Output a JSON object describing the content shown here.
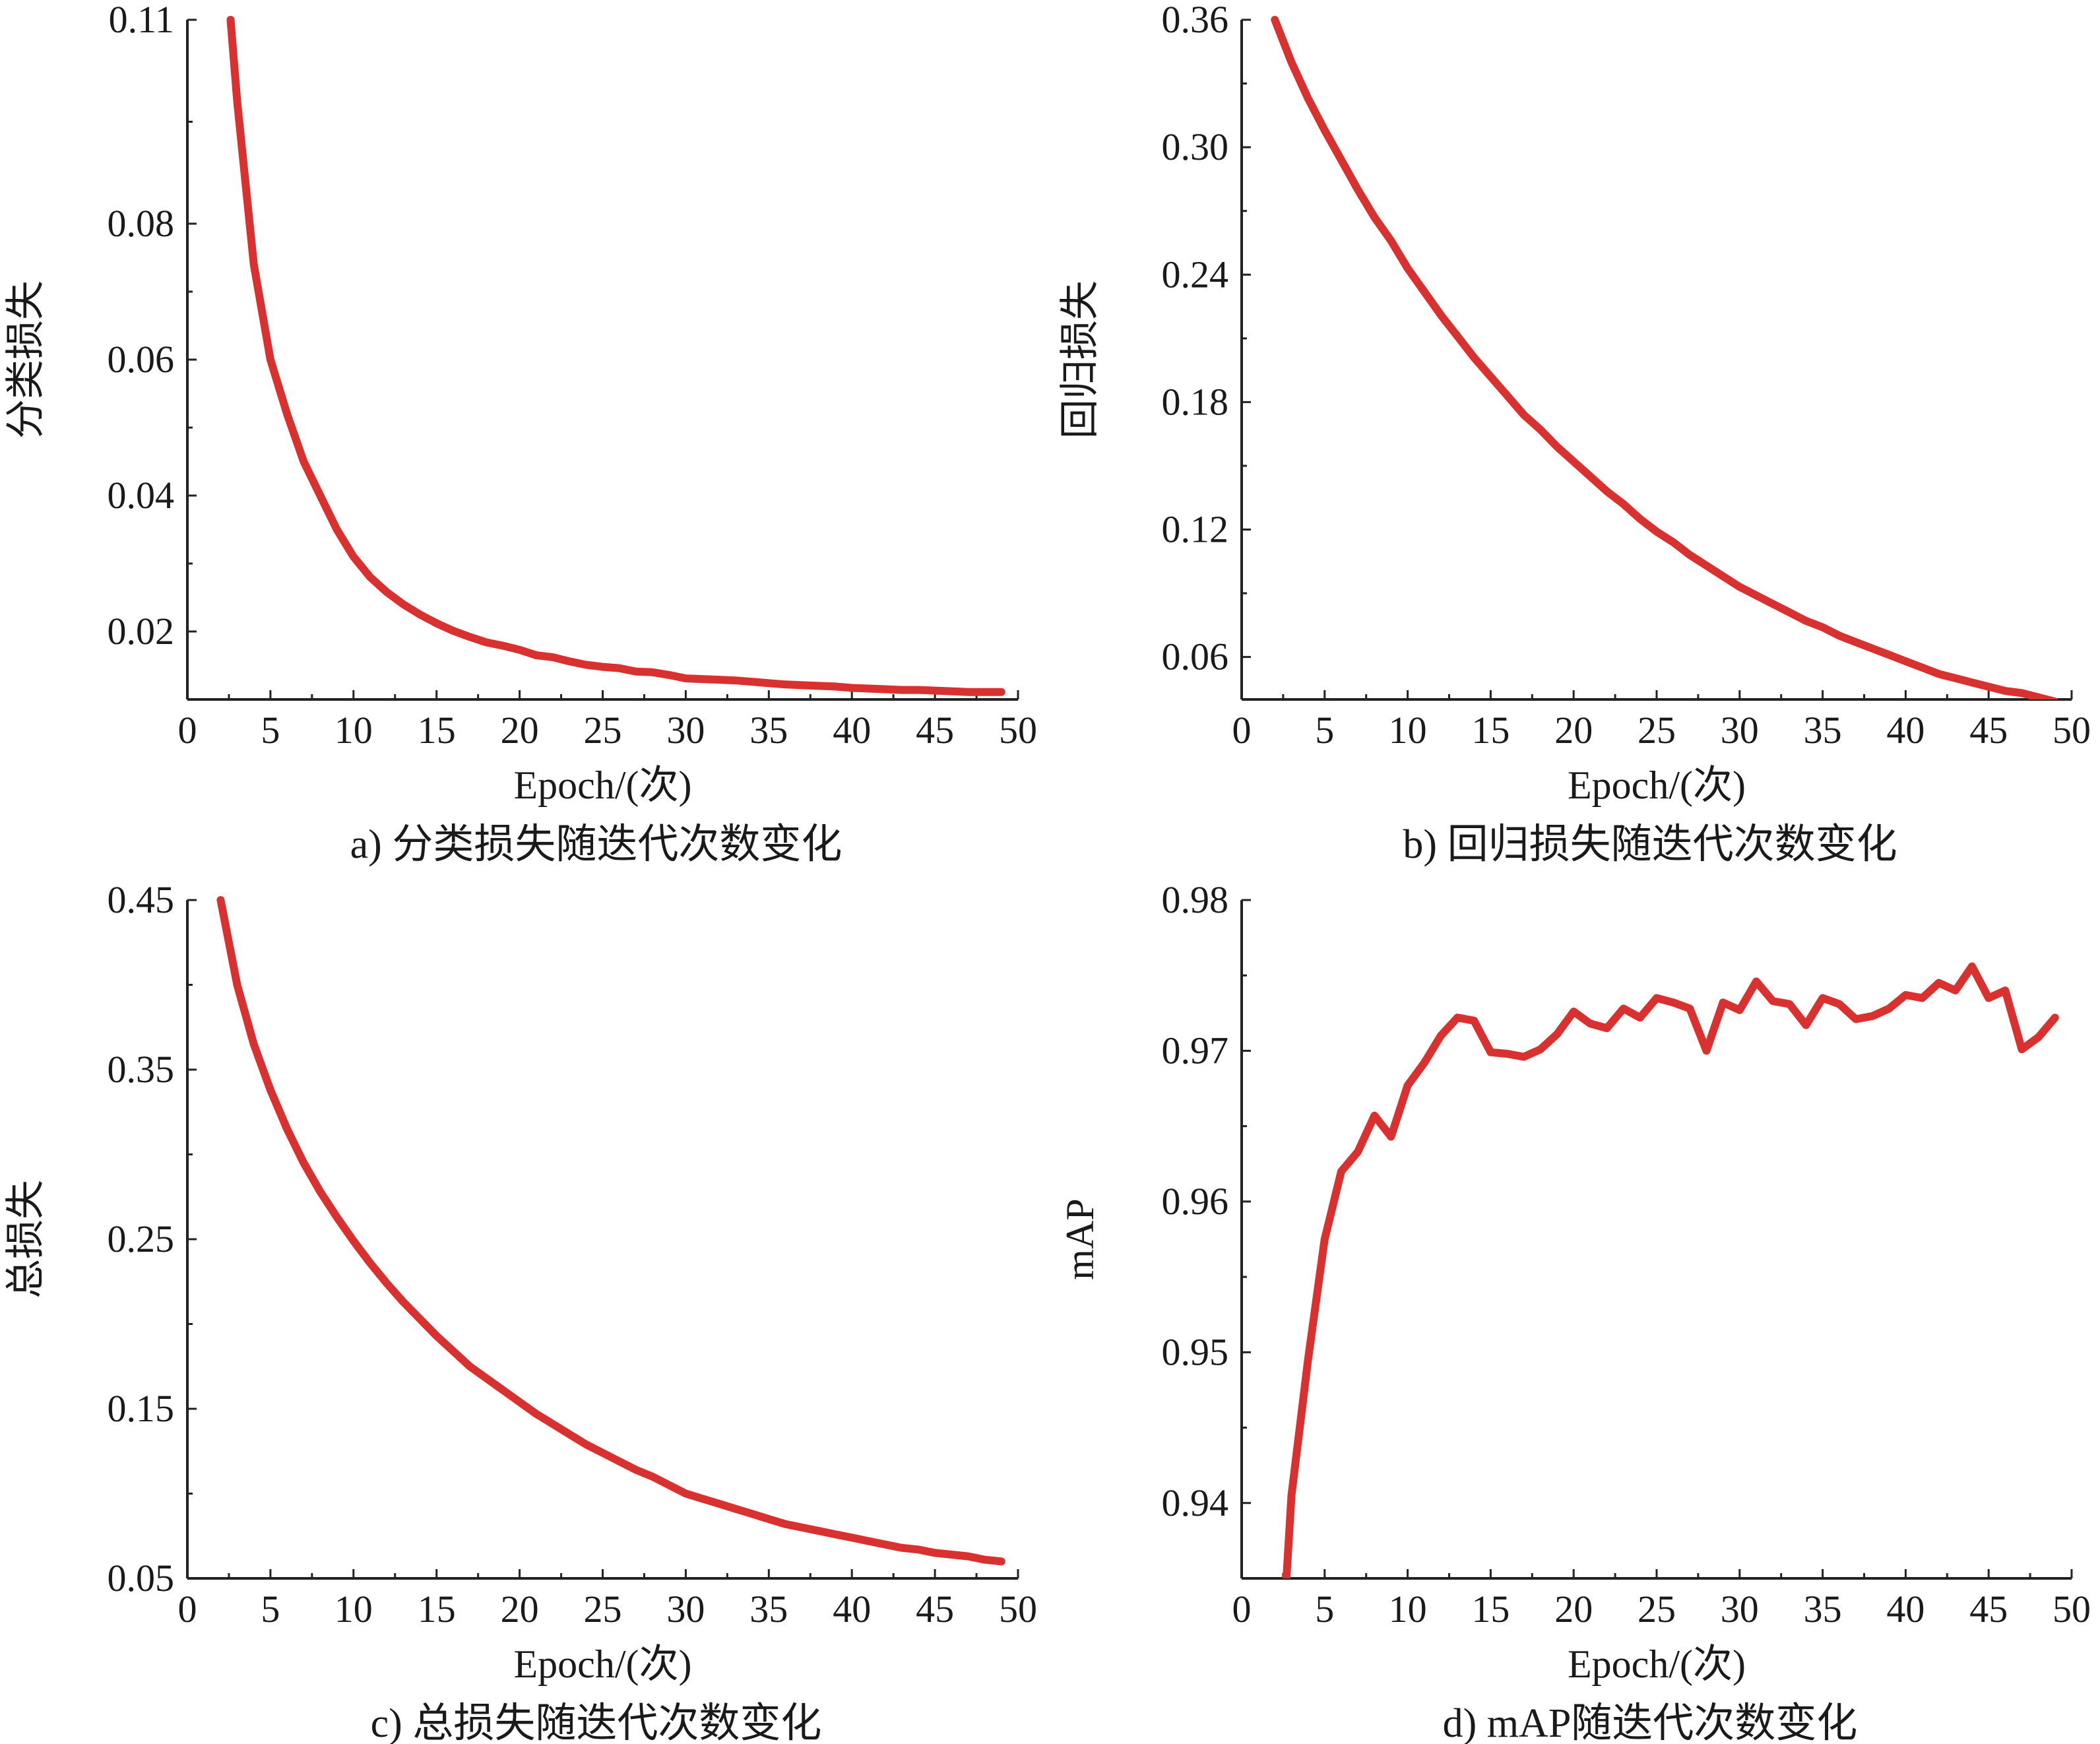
{
  "series_color": "#d93030",
  "chart_data": [
    {
      "type": "line",
      "caption": "a) 分类损失随迭代次数变化",
      "xlabel": "Epoch/(次)",
      "ylabel": "分类损失",
      "xlim": [
        0,
        50
      ],
      "ylim": [
        0.01,
        0.11
      ],
      "xticks": [
        "0",
        "5",
        "10",
        "15",
        "20",
        "25",
        "30",
        "35",
        "40",
        "45",
        "50"
      ],
      "yticks": [
        "0.02",
        "0.04",
        "0.06",
        "0.08",
        "0.11"
      ],
      "ytick_values": [
        0.02,
        0.04,
        0.06,
        0.08,
        0.11
      ],
      "grid": false,
      "x": [
        2.6,
        3,
        4,
        5,
        6,
        7,
        8,
        9,
        10,
        11,
        12,
        13,
        14,
        15,
        16,
        17,
        18,
        19,
        20,
        21,
        22,
        23,
        24,
        25,
        26,
        27,
        28,
        29,
        30,
        31,
        32,
        33,
        34,
        35,
        36,
        37,
        38,
        39,
        40,
        41,
        42,
        43,
        44,
        45,
        46,
        47,
        48,
        49
      ],
      "y": [
        0.11,
        0.098,
        0.074,
        0.06,
        0.052,
        0.045,
        0.04,
        0.035,
        0.031,
        0.028,
        0.0258,
        0.024,
        0.0225,
        0.0212,
        0.0201,
        0.0192,
        0.0184,
        0.0179,
        0.0173,
        0.0165,
        0.0162,
        0.0156,
        0.0151,
        0.0148,
        0.0146,
        0.0141,
        0.014,
        0.0136,
        0.0131,
        0.013,
        0.0129,
        0.0128,
        0.0126,
        0.0124,
        0.0122,
        0.0121,
        0.012,
        0.0119,
        0.0117,
        0.0116,
        0.0115,
        0.0114,
        0.0114,
        0.0113,
        0.0112,
        0.0111,
        0.0111,
        0.0111
      ]
    },
    {
      "type": "line",
      "caption": "b) 回归损失随迭代次数变化",
      "xlabel": "Epoch/(次)",
      "ylabel": "回归损失",
      "xlim": [
        0,
        50
      ],
      "ylim": [
        0.04,
        0.36
      ],
      "xticks": [
        "0",
        "5",
        "10",
        "15",
        "20",
        "25",
        "30",
        "35",
        "40",
        "45",
        "50"
      ],
      "yticks": [
        "0.06",
        "0.12",
        "0.18",
        "0.24",
        "0.30",
        "0.36"
      ],
      "ytick_values": [
        0.06,
        0.12,
        0.18,
        0.24,
        0.3,
        0.36
      ],
      "grid": false,
      "x": [
        2,
        3,
        4,
        5,
        6,
        7,
        8,
        9,
        10,
        11,
        12,
        13,
        14,
        15,
        16,
        17,
        18,
        19,
        20,
        21,
        22,
        23,
        24,
        25,
        26,
        27,
        28,
        29,
        30,
        31,
        32,
        33,
        34,
        35,
        36,
        37,
        38,
        39,
        40,
        41,
        42,
        43,
        44,
        45,
        46,
        47,
        48,
        49
      ],
      "y": [
        0.36,
        0.34,
        0.323,
        0.308,
        0.294,
        0.28,
        0.267,
        0.256,
        0.243,
        0.232,
        0.221,
        0.211,
        0.201,
        0.192,
        0.183,
        0.174,
        0.167,
        0.159,
        0.152,
        0.145,
        0.138,
        0.132,
        0.125,
        0.119,
        0.114,
        0.108,
        0.103,
        0.098,
        0.093,
        0.089,
        0.085,
        0.081,
        0.077,
        0.074,
        0.07,
        0.067,
        0.064,
        0.061,
        0.058,
        0.055,
        0.052,
        0.05,
        0.048,
        0.046,
        0.044,
        0.043,
        0.041,
        0.039
      ]
    },
    {
      "type": "line",
      "caption": "c) 总损失随迭代次数变化",
      "xlabel": "Epoch/(次)",
      "ylabel": "总损失",
      "xlim": [
        0,
        50
      ],
      "ylim": [
        0.05,
        0.45
      ],
      "xticks": [
        "0",
        "5",
        "10",
        "15",
        "20",
        "25",
        "30",
        "35",
        "40",
        "45",
        "50"
      ],
      "yticks": [
        "0.05",
        "0.15",
        "0.25",
        "0.35",
        "0.45"
      ],
      "ytick_values": [
        0.05,
        0.15,
        0.25,
        0.35,
        0.45
      ],
      "grid": false,
      "x": [
        2,
        3,
        4,
        5,
        6,
        7,
        8,
        9,
        10,
        11,
        12,
        13,
        14,
        15,
        16,
        17,
        18,
        19,
        20,
        21,
        22,
        23,
        24,
        25,
        26,
        27,
        28,
        29,
        30,
        31,
        32,
        33,
        34,
        35,
        36,
        37,
        38,
        39,
        40,
        41,
        42,
        43,
        44,
        45,
        46,
        47,
        48,
        49
      ],
      "y": [
        0.45,
        0.4,
        0.365,
        0.338,
        0.315,
        0.295,
        0.278,
        0.263,
        0.249,
        0.236,
        0.224,
        0.213,
        0.203,
        0.193,
        0.184,
        0.175,
        0.168,
        0.161,
        0.154,
        0.147,
        0.141,
        0.135,
        0.129,
        0.124,
        0.119,
        0.114,
        0.11,
        0.105,
        0.1,
        0.097,
        0.094,
        0.091,
        0.088,
        0.085,
        0.082,
        0.08,
        0.078,
        0.076,
        0.074,
        0.072,
        0.07,
        0.068,
        0.067,
        0.065,
        0.064,
        0.063,
        0.061,
        0.06
      ]
    },
    {
      "type": "line",
      "caption": "d) mAP随迭代次数变化",
      "xlabel": "Epoch/(次)",
      "ylabel": "mAP",
      "xlim": [
        0,
        50
      ],
      "ylim": [
        0.935,
        0.98
      ],
      "xticks": [
        "0",
        "5",
        "10",
        "15",
        "20",
        "25",
        "30",
        "35",
        "40",
        "45",
        "50"
      ],
      "yticks": [
        "0.94",
        "0.95",
        "0.96",
        "0.97",
        "0.98"
      ],
      "ytick_values": [
        0.94,
        0.95,
        0.96,
        0.97,
        0.98
      ],
      "grid": false,
      "x": [
        2.7,
        3,
        4,
        5,
        6,
        7,
        8,
        9,
        10,
        11,
        12,
        13,
        14,
        15,
        16,
        17,
        18,
        19,
        20,
        21,
        22,
        23,
        24,
        25,
        26,
        27,
        28,
        29,
        30,
        31,
        32,
        33,
        34,
        35,
        36,
        37,
        38,
        39,
        40,
        41,
        42,
        43,
        44,
        45,
        46,
        47,
        48,
        49
      ],
      "y": [
        0.935,
        0.9405,
        0.9495,
        0.9575,
        0.962,
        0.9633,
        0.9657,
        0.9643,
        0.9677,
        0.9692,
        0.971,
        0.9722,
        0.972,
        0.9699,
        0.9698,
        0.9696,
        0.9701,
        0.9711,
        0.9726,
        0.9718,
        0.9715,
        0.9728,
        0.9722,
        0.9735,
        0.9732,
        0.9728,
        0.97,
        0.9732,
        0.9727,
        0.9746,
        0.9733,
        0.9731,
        0.9717,
        0.9735,
        0.9731,
        0.9721,
        0.9723,
        0.9728,
        0.9737,
        0.9735,
        0.9745,
        0.974,
        0.9756,
        0.9735,
        0.974,
        0.9701,
        0.9709,
        0.9722
      ]
    }
  ]
}
